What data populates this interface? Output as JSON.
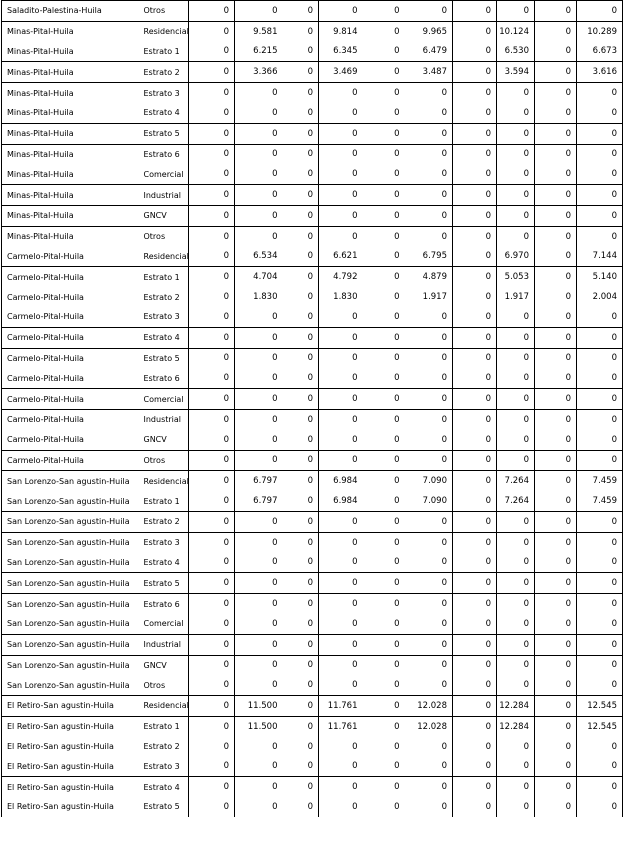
{
  "page": {
    "background": "#ffffff",
    "border_color": "#000000",
    "text_color": "#000000"
  },
  "table": {
    "rows": [
      {
        "location": "Saladito-Palestina-Huila",
        "category": "Otros",
        "values": [
          "0",
          "0",
          "0",
          "0",
          "0",
          "0",
          "0",
          "0",
          "0",
          "0"
        ],
        "border_bottom": true
      },
      {
        "location": "Minas-Pital-Huila",
        "category": "Residencial",
        "values": [
          "0",
          "9.581",
          "0",
          "9.814",
          "0",
          "9.965",
          "0",
          "10.124",
          "0",
          "10.289"
        ],
        "border_bottom": false
      },
      {
        "location": "Minas-Pital-Huila",
        "category": "Estrato 1",
        "values": [
          "0",
          "6.215",
          "0",
          "6.345",
          "0",
          "6.479",
          "0",
          "6.530",
          "0",
          "6.673"
        ],
        "border_bottom": true
      },
      {
        "location": "Minas-Pital-Huila",
        "category": "Estrato 2",
        "values": [
          "0",
          "3.366",
          "0",
          "3.469",
          "0",
          "3.487",
          "0",
          "3.594",
          "0",
          "3.616"
        ],
        "border_bottom": true
      },
      {
        "location": "Minas-Pital-Huila",
        "category": "Estrato 3",
        "values": [
          "0",
          "0",
          "0",
          "0",
          "0",
          "0",
          "0",
          "0",
          "0",
          "0"
        ],
        "border_bottom": false
      },
      {
        "location": "Minas-Pital-Huila",
        "category": "Estrato 4",
        "values": [
          "0",
          "0",
          "0",
          "0",
          "0",
          "0",
          "0",
          "0",
          "0",
          "0"
        ],
        "border_bottom": true
      },
      {
        "location": "Minas-Pital-Huila",
        "category": "Estrato 5",
        "values": [
          "0",
          "0",
          "0",
          "0",
          "0",
          "0",
          "0",
          "0",
          "0",
          "0"
        ],
        "border_bottom": true
      },
      {
        "location": "Minas-Pital-Huila",
        "category": "Estrato 6",
        "values": [
          "0",
          "0",
          "0",
          "0",
          "0",
          "0",
          "0",
          "0",
          "0",
          "0"
        ],
        "border_bottom": false
      },
      {
        "location": "Minas-Pital-Huila",
        "category": "Comercial",
        "values": [
          "0",
          "0",
          "0",
          "0",
          "0",
          "0",
          "0",
          "0",
          "0",
          "0"
        ],
        "border_bottom": true
      },
      {
        "location": "Minas-Pital-Huila",
        "category": "Industrial",
        "values": [
          "0",
          "0",
          "0",
          "0",
          "0",
          "0",
          "0",
          "0",
          "0",
          "0"
        ],
        "border_bottom": true
      },
      {
        "location": "Minas-Pital-Huila",
        "category": "GNCV",
        "values": [
          "0",
          "0",
          "0",
          "0",
          "0",
          "0",
          "0",
          "0",
          "0",
          "0"
        ],
        "border_bottom": true
      },
      {
        "location": "Minas-Pital-Huila",
        "category": "Otros",
        "values": [
          "0",
          "0",
          "0",
          "0",
          "0",
          "0",
          "0",
          "0",
          "0",
          "0"
        ],
        "border_bottom": false
      },
      {
        "location": "Carmelo-Pital-Huila",
        "category": "Residencial",
        "values": [
          "0",
          "6.534",
          "0",
          "6.621",
          "0",
          "6.795",
          "0",
          "6.970",
          "0",
          "7.144"
        ],
        "border_bottom": true
      },
      {
        "location": "Carmelo-Pital-Huila",
        "category": "Estrato 1",
        "values": [
          "0",
          "4.704",
          "0",
          "4.792",
          "0",
          "4.879",
          "0",
          "5.053",
          "0",
          "5.140"
        ],
        "border_bottom": false
      },
      {
        "location": "Carmelo-Pital-Huila",
        "category": "Estrato 2",
        "values": [
          "0",
          "1.830",
          "0",
          "1.830",
          "0",
          "1.917",
          "0",
          "1.917",
          "0",
          "2.004"
        ],
        "border_bottom": false
      },
      {
        "location": "Carmelo-Pital-Huila",
        "category": "Estrato 3",
        "values": [
          "0",
          "0",
          "0",
          "0",
          "0",
          "0",
          "0",
          "0",
          "0",
          "0"
        ],
        "border_bottom": true
      },
      {
        "location": "Carmelo-Pital-Huila",
        "category": "Estrato 4",
        "values": [
          "0",
          "0",
          "0",
          "0",
          "0",
          "0",
          "0",
          "0",
          "0",
          "0"
        ],
        "border_bottom": true
      },
      {
        "location": "Carmelo-Pital-Huila",
        "category": "Estrato 5",
        "values": [
          "0",
          "0",
          "0",
          "0",
          "0",
          "0",
          "0",
          "0",
          "0",
          "0"
        ],
        "border_bottom": false
      },
      {
        "location": "Carmelo-Pital-Huila",
        "category": "Estrato 6",
        "values": [
          "0",
          "0",
          "0",
          "0",
          "0",
          "0",
          "0",
          "0",
          "0",
          "0"
        ],
        "border_bottom": true
      },
      {
        "location": "Carmelo-Pital-Huila",
        "category": "Comercial",
        "values": [
          "0",
          "0",
          "0",
          "0",
          "0",
          "0",
          "0",
          "0",
          "0",
          "0"
        ],
        "border_bottom": true
      },
      {
        "location": "Carmelo-Pital-Huila",
        "category": "Industrial",
        "values": [
          "0",
          "0",
          "0",
          "0",
          "0",
          "0",
          "0",
          "0",
          "0",
          "0"
        ],
        "border_bottom": false
      },
      {
        "location": "Carmelo-Pital-Huila",
        "category": "GNCV",
        "values": [
          "0",
          "0",
          "0",
          "0",
          "0",
          "0",
          "0",
          "0",
          "0",
          "0"
        ],
        "border_bottom": true
      },
      {
        "location": "Carmelo-Pital-Huila",
        "category": "Otros",
        "values": [
          "0",
          "0",
          "0",
          "0",
          "0",
          "0",
          "0",
          "0",
          "0",
          "0"
        ],
        "border_bottom": true
      },
      {
        "location": "San Lorenzo-San agustin-Huila",
        "category": "Residencial",
        "values": [
          "0",
          "6.797",
          "0",
          "6.984",
          "0",
          "7.090",
          "0",
          "7.264",
          "0",
          "7.459"
        ],
        "border_bottom": false
      },
      {
        "location": "San Lorenzo-San agustin-Huila",
        "category": "Estrato 1",
        "values": [
          "0",
          "6.797",
          "0",
          "6.984",
          "0",
          "7.090",
          "0",
          "7.264",
          "0",
          "7.459"
        ],
        "border_bottom": true
      },
      {
        "location": "San Lorenzo-San agustin-Huila",
        "category": "Estrato 2",
        "values": [
          "0",
          "0",
          "0",
          "0",
          "0",
          "0",
          "0",
          "0",
          "0",
          "0"
        ],
        "border_bottom": true
      },
      {
        "location": "San Lorenzo-San agustin-Huila",
        "category": "Estrato 3",
        "values": [
          "0",
          "0",
          "0",
          "0",
          "0",
          "0",
          "0",
          "0",
          "0",
          "0"
        ],
        "border_bottom": false
      },
      {
        "location": "San Lorenzo-San agustin-Huila",
        "category": "Estrato 4",
        "values": [
          "0",
          "0",
          "0",
          "0",
          "0",
          "0",
          "0",
          "0",
          "0",
          "0"
        ],
        "border_bottom": true
      },
      {
        "location": "San Lorenzo-San agustin-Huila",
        "category": "Estrato 5",
        "values": [
          "0",
          "0",
          "0",
          "0",
          "0",
          "0",
          "0",
          "0",
          "0",
          "0"
        ],
        "border_bottom": true
      },
      {
        "location": "San Lorenzo-San agustin-Huila",
        "category": "Estrato 6",
        "values": [
          "0",
          "0",
          "0",
          "0",
          "0",
          "0",
          "0",
          "0",
          "0",
          "0"
        ],
        "border_bottom": false
      },
      {
        "location": "San Lorenzo-San agustin-Huila",
        "category": "Comercial",
        "values": [
          "0",
          "0",
          "0",
          "0",
          "0",
          "0",
          "0",
          "0",
          "0",
          "0"
        ],
        "border_bottom": true
      },
      {
        "location": "San Lorenzo-San agustin-Huila",
        "category": "Industrial",
        "values": [
          "0",
          "0",
          "0",
          "0",
          "0",
          "0",
          "0",
          "0",
          "0",
          "0"
        ],
        "border_bottom": true
      },
      {
        "location": "San Lorenzo-San agustin-Huila",
        "category": "GNCV",
        "values": [
          "0",
          "0",
          "0",
          "0",
          "0",
          "0",
          "0",
          "0",
          "0",
          "0"
        ],
        "border_bottom": false
      },
      {
        "location": "San Lorenzo-San agustin-Huila",
        "category": "Otros",
        "values": [
          "0",
          "0",
          "0",
          "0",
          "0",
          "0",
          "0",
          "0",
          "0",
          "0"
        ],
        "border_bottom": true
      },
      {
        "location": "El Retiro-San agustin-Huila",
        "category": "Residencial",
        "values": [
          "0",
          "11.500",
          "0",
          "11.761",
          "0",
          "12.028",
          "0",
          "12.284",
          "0",
          "12.545"
        ],
        "border_bottom": true
      },
      {
        "location": "El Retiro-San agustin-Huila",
        "category": "Estrato 1",
        "values": [
          "0",
          "11.500",
          "0",
          "11.761",
          "0",
          "12.028",
          "0",
          "12.284",
          "0",
          "12.545"
        ],
        "border_bottom": false
      },
      {
        "location": "El Retiro-San agustin-Huila",
        "category": "Estrato 2",
        "values": [
          "0",
          "0",
          "0",
          "0",
          "0",
          "0",
          "0",
          "0",
          "0",
          "0"
        ],
        "border_bottom": false
      },
      {
        "location": "El Retiro-San agustin-Huila",
        "category": "Estrato 3",
        "values": [
          "0",
          "0",
          "0",
          "0",
          "0",
          "0",
          "0",
          "0",
          "0",
          "0"
        ],
        "border_bottom": true
      },
      {
        "location": "El Retiro-San agustin-Huila",
        "category": "Estrato 4",
        "values": [
          "0",
          "0",
          "0",
          "0",
          "0",
          "0",
          "0",
          "0",
          "0",
          "0"
        ],
        "border_bottom": false
      },
      {
        "location": "El Retiro-San agustin-Huila",
        "category": "Estrato 5",
        "values": [
          "0",
          "0",
          "0",
          "0",
          "0",
          "0",
          "0",
          "0",
          "0",
          "0"
        ],
        "border_bottom": false
      }
    ]
  }
}
